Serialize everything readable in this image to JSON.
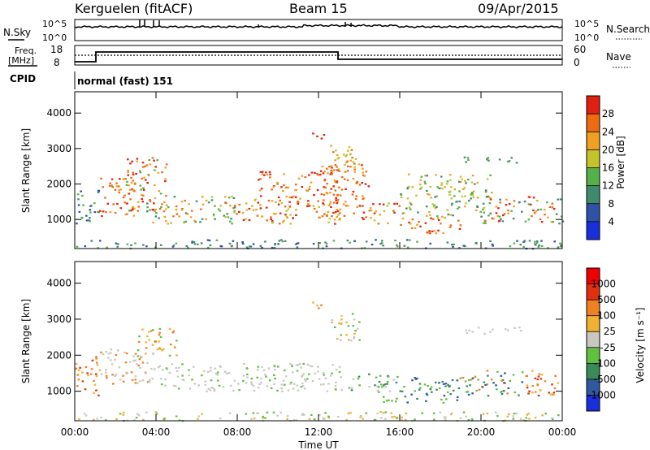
{
  "header": {
    "station": "Kerguelen (fitACF)",
    "beam": "Beam 15",
    "date": "09/Apr/2015"
  },
  "top_panel": {
    "left_label": "N.Sky",
    "right_label": "N.Search",
    "tick_hi": "10^5",
    "tick_lo": "10^0"
  },
  "freq_panel": {
    "left_label_1": "Freq.",
    "left_label_2": "[MHz]",
    "left_tick_hi": "18",
    "left_tick_lo": "8",
    "right_label": "Nave",
    "right_tick_hi": "60",
    "right_tick_lo": "0",
    "cpid_label": "CPID",
    "cpid_value": "normal (fast) 151"
  },
  "chart_data": [
    {
      "type": "heatmap",
      "name": "power",
      "ylabel": "Slant Range [km]",
      "ylim": [
        180,
        4600
      ],
      "yticks": [
        "1000",
        "2000",
        "3000",
        "4000"
      ],
      "colorbar_label": "Power [dB]",
      "colorbar_ticks": [
        "4",
        "8",
        "12",
        "16",
        "20",
        "24",
        "28"
      ],
      "colorbar_colors": [
        "#1a2fdc",
        "#2f52a8",
        "#3f8a6e",
        "#56b04a",
        "#c4c32a",
        "#f0a020",
        "#f06a10",
        "#e02010"
      ]
    },
    {
      "type": "heatmap",
      "name": "velocity",
      "ylabel": "Slant Range [km]",
      "ylim": [
        180,
        4600
      ],
      "yticks": [
        "1000",
        "2000",
        "3000",
        "4000"
      ],
      "colorbar_label": "Velocity [m s⁻¹]",
      "colorbar_ticks": [
        "1000",
        "500",
        "100",
        "25",
        "-25",
        "-100",
        "-500",
        "-1000"
      ],
      "colorbar_colors": [
        "#1a2fdc",
        "#2f5aa0",
        "#3a8a5a",
        "#60c040",
        "#c8c8c0",
        "#f0b030",
        "#f08020",
        "#e03010",
        "#f00000"
      ]
    }
  ],
  "time_axis": {
    "label": "Time UT",
    "ticks": [
      "00:00",
      "04:00",
      "08:00",
      "12:00",
      "16:00",
      "20:00",
      "00:00"
    ]
  }
}
